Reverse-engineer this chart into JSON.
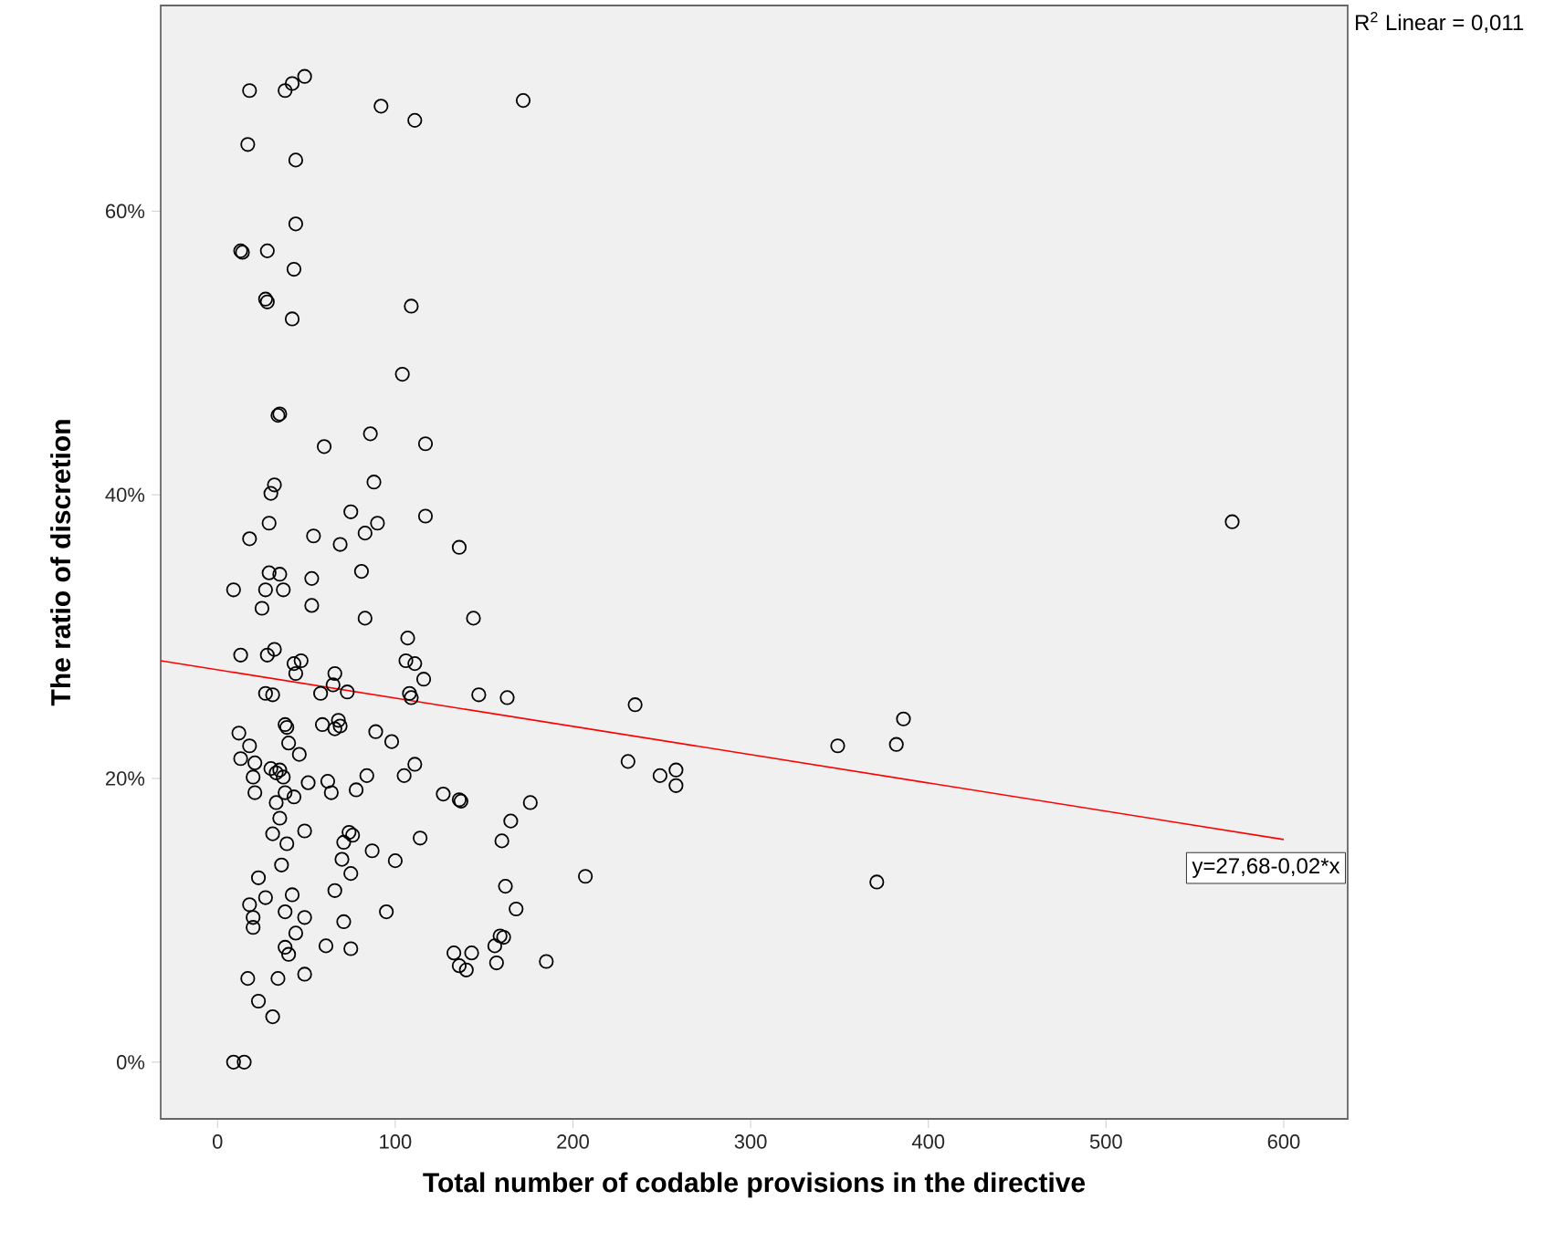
{
  "chart_data": {
    "type": "scatter",
    "xlabel": "Total number of codable provisions in the directive",
    "ylabel": "The ratio of discretion",
    "xlim": [
      -32,
      636
    ],
    "ylim": [
      -4,
      74.5
    ],
    "xticks": [
      0,
      100,
      200,
      300,
      400,
      500,
      600
    ],
    "yticks": [
      {
        "value": 0,
        "label": "0%"
      },
      {
        "value": 20,
        "label": "20%"
      },
      {
        "value": 40,
        "label": "40%"
      },
      {
        "value": 60,
        "label": "60%"
      }
    ],
    "grid": false,
    "series": [
      {
        "color": "#000000",
        "marker": "circle",
        "x": [
          18,
          38,
          42,
          49,
          92,
          111,
          172,
          17,
          44,
          44,
          13,
          14,
          28,
          43,
          27,
          28,
          42,
          109,
          104,
          34,
          35,
          60,
          86,
          117,
          88,
          32,
          30,
          117,
          29,
          75,
          90,
          83,
          54,
          18,
          69,
          136,
          9,
          29,
          35,
          27,
          37,
          53,
          81,
          25,
          53,
          83,
          144,
          107,
          13,
          28,
          32,
          43,
          47,
          44,
          106,
          111,
          116,
          66,
          65,
          27,
          31,
          58,
          73,
          108,
          109,
          147,
          163,
          38,
          39,
          59,
          68,
          66,
          69,
          89,
          98,
          12,
          18,
          40,
          46,
          13,
          21,
          30,
          35,
          33,
          20,
          21,
          37,
          38,
          33,
          43,
          51,
          62,
          64,
          78,
          84,
          105,
          111,
          127,
          136,
          137,
          176,
          35,
          31,
          39,
          49,
          74,
          71,
          76,
          70,
          87,
          100,
          114,
          165,
          160,
          36,
          75,
          23,
          27,
          18,
          42,
          66,
          38,
          49,
          20,
          20,
          71,
          95,
          162,
          168,
          44,
          38,
          40,
          61,
          75,
          133,
          143,
          136,
          140,
          156,
          159,
          161,
          157,
          185,
          17,
          34,
          49,
          23,
          31,
          9,
          15,
          235,
          231,
          249,
          258,
          258,
          207,
          349,
          571,
          382,
          386,
          371
        ],
        "values": [
          68.5,
          68.5,
          69,
          69.5,
          67.4,
          66.4,
          67.8,
          64.7,
          63.6,
          59.1,
          57.2,
          57.1,
          57.2,
          55.9,
          53.8,
          53.6,
          52.4,
          53.3,
          48.5,
          45.6,
          45.7,
          43.4,
          44.3,
          43.6,
          40.9,
          40.7,
          40.1,
          38.5,
          38.0,
          38.8,
          38.0,
          37.3,
          37.1,
          36.9,
          36.5,
          36.3,
          33.3,
          34.5,
          34.4,
          33.3,
          33.3,
          34.1,
          34.6,
          32.0,
          32.2,
          31.3,
          31.3,
          29.9,
          28.7,
          28.7,
          29.1,
          28.1,
          28.3,
          27.4,
          28.3,
          28.1,
          27.0,
          27.4,
          26.6,
          26.0,
          25.9,
          26.0,
          26.1,
          26.0,
          25.7,
          25.9,
          25.7,
          23.8,
          23.6,
          23.8,
          24.1,
          23.5,
          23.7,
          23.3,
          22.6,
          23.2,
          22.3,
          22.5,
          21.7,
          21.4,
          21.1,
          20.7,
          20.6,
          20.4,
          20.1,
          19.0,
          20.1,
          19.0,
          18.3,
          18.7,
          19.7,
          19.8,
          19.0,
          19.2,
          20.2,
          20.2,
          21.0,
          18.9,
          18.5,
          18.4,
          18.3,
          17.2,
          16.1,
          15.4,
          16.3,
          16.2,
          15.5,
          16.0,
          14.3,
          14.9,
          14.2,
          15.8,
          17.0,
          15.6,
          13.9,
          13.3,
          13.0,
          11.6,
          11.1,
          11.8,
          12.1,
          10.6,
          10.2,
          10.2,
          9.5,
          9.9,
          10.6,
          12.4,
          10.8,
          9.1,
          8.1,
          7.6,
          8.2,
          8.0,
          7.7,
          7.7,
          6.8,
          6.5,
          8.2,
          8.9,
          8.8,
          7.0,
          7.1,
          5.9,
          5.9,
          6.2,
          4.3,
          3.2,
          0,
          0,
          25.2,
          21.2,
          20.2,
          20.6,
          19.5,
          13.1,
          22.3,
          38.1,
          22.4,
          24.2,
          12.7
        ]
      },
      {
        "type": "line",
        "color": "#ff0000",
        "x": [
          -32,
          600
        ],
        "values": [
          28.3,
          15.7
        ]
      }
    ],
    "annotations": [
      {
        "text": "y=27,68-0,02*x",
        "x": 600,
        "y": 15.7
      },
      "R$^{2}$ Linear = 0,011"
    ]
  }
}
